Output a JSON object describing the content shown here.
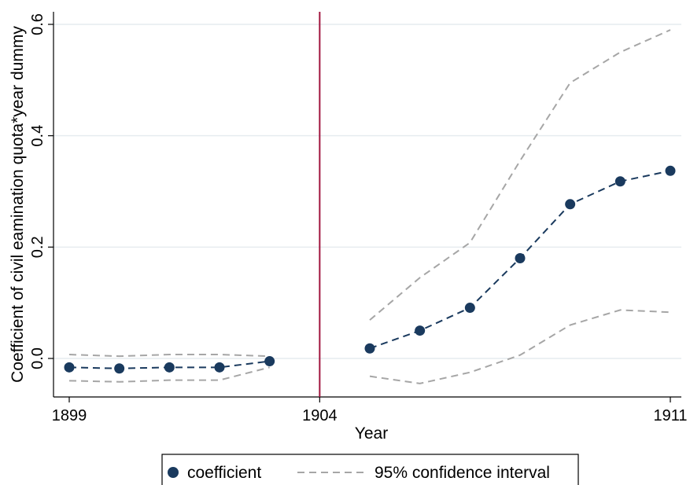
{
  "chart_data": {
    "type": "line",
    "title": "",
    "xlabel": "Year",
    "ylabel": "Coefficient of civil eamination quota*year dummy",
    "xlim": [
      1899,
      1911
    ],
    "ylim": [
      -0.07,
      0.62
    ],
    "x_ticks": [
      1899,
      1904,
      1911
    ],
    "y_ticks": [
      0.0,
      0.2,
      0.4,
      0.6
    ],
    "y_tick_labels": [
      "0.0",
      "0.2",
      "0.4",
      "0.6"
    ],
    "grid": true,
    "reference_line": {
      "x": 1904,
      "color": "#a0153e"
    },
    "legend": {
      "position": "bottom",
      "entries": [
        "coefficient",
        "95% confidence interval"
      ]
    },
    "series": [
      {
        "name": "coefficient",
        "segments": [
          {
            "x": [
              1899,
              1900,
              1901,
              1902,
              1903
            ],
            "y": [
              -0.016,
              -0.018,
              -0.016,
              -0.016,
              -0.005
            ]
          },
          {
            "x": [
              1905,
              1906,
              1907,
              1908,
              1909,
              1910,
              1911
            ],
            "y": [
              0.018,
              0.05,
              0.091,
              0.18,
              0.277,
              0.318,
              0.337
            ]
          }
        ],
        "color": "#1a3a5e"
      },
      {
        "name": "95% confidence interval",
        "bound": "upper",
        "segments": [
          {
            "x": [
              1899,
              1900,
              1901,
              1902,
              1903
            ],
            "y": [
              0.007,
              0.004,
              0.007,
              0.007,
              0.004
            ]
          },
          {
            "x": [
              1905,
              1906,
              1907,
              1908,
              1909,
              1910,
              1911
            ],
            "y": [
              0.069,
              0.145,
              0.208,
              0.355,
              0.495,
              0.55,
              0.59
            ]
          }
        ],
        "color": "#a6a6a6"
      },
      {
        "name": "95% confidence interval",
        "bound": "lower",
        "segments": [
          {
            "x": [
              1899,
              1900,
              1901,
              1902,
              1903
            ],
            "y": [
              -0.04,
              -0.042,
              -0.039,
              -0.039,
              -0.016
            ]
          },
          {
            "x": [
              1905,
              1906,
              1907,
              1908,
              1909,
              1910,
              1911
            ],
            "y": [
              -0.032,
              -0.045,
              -0.025,
              0.006,
              0.06,
              0.087,
              0.083
            ]
          }
        ],
        "color": "#a6a6a6"
      }
    ]
  }
}
